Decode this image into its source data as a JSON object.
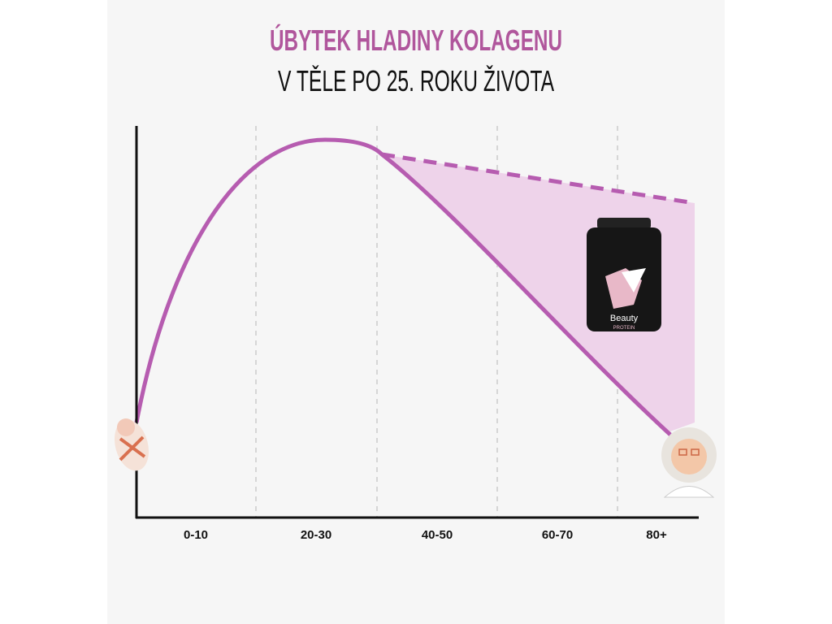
{
  "title": {
    "line1": "ÚBYTEK HLADINY KOLAGENU",
    "line2": "V TĚLE PO 25. ROKU ŽIVOTA"
  },
  "x_labels": [
    "0-10",
    "20-30",
    "40-50",
    "60-70",
    "80+"
  ],
  "product": {
    "brand": "Beauty",
    "name": "PROTEIN"
  }
}
